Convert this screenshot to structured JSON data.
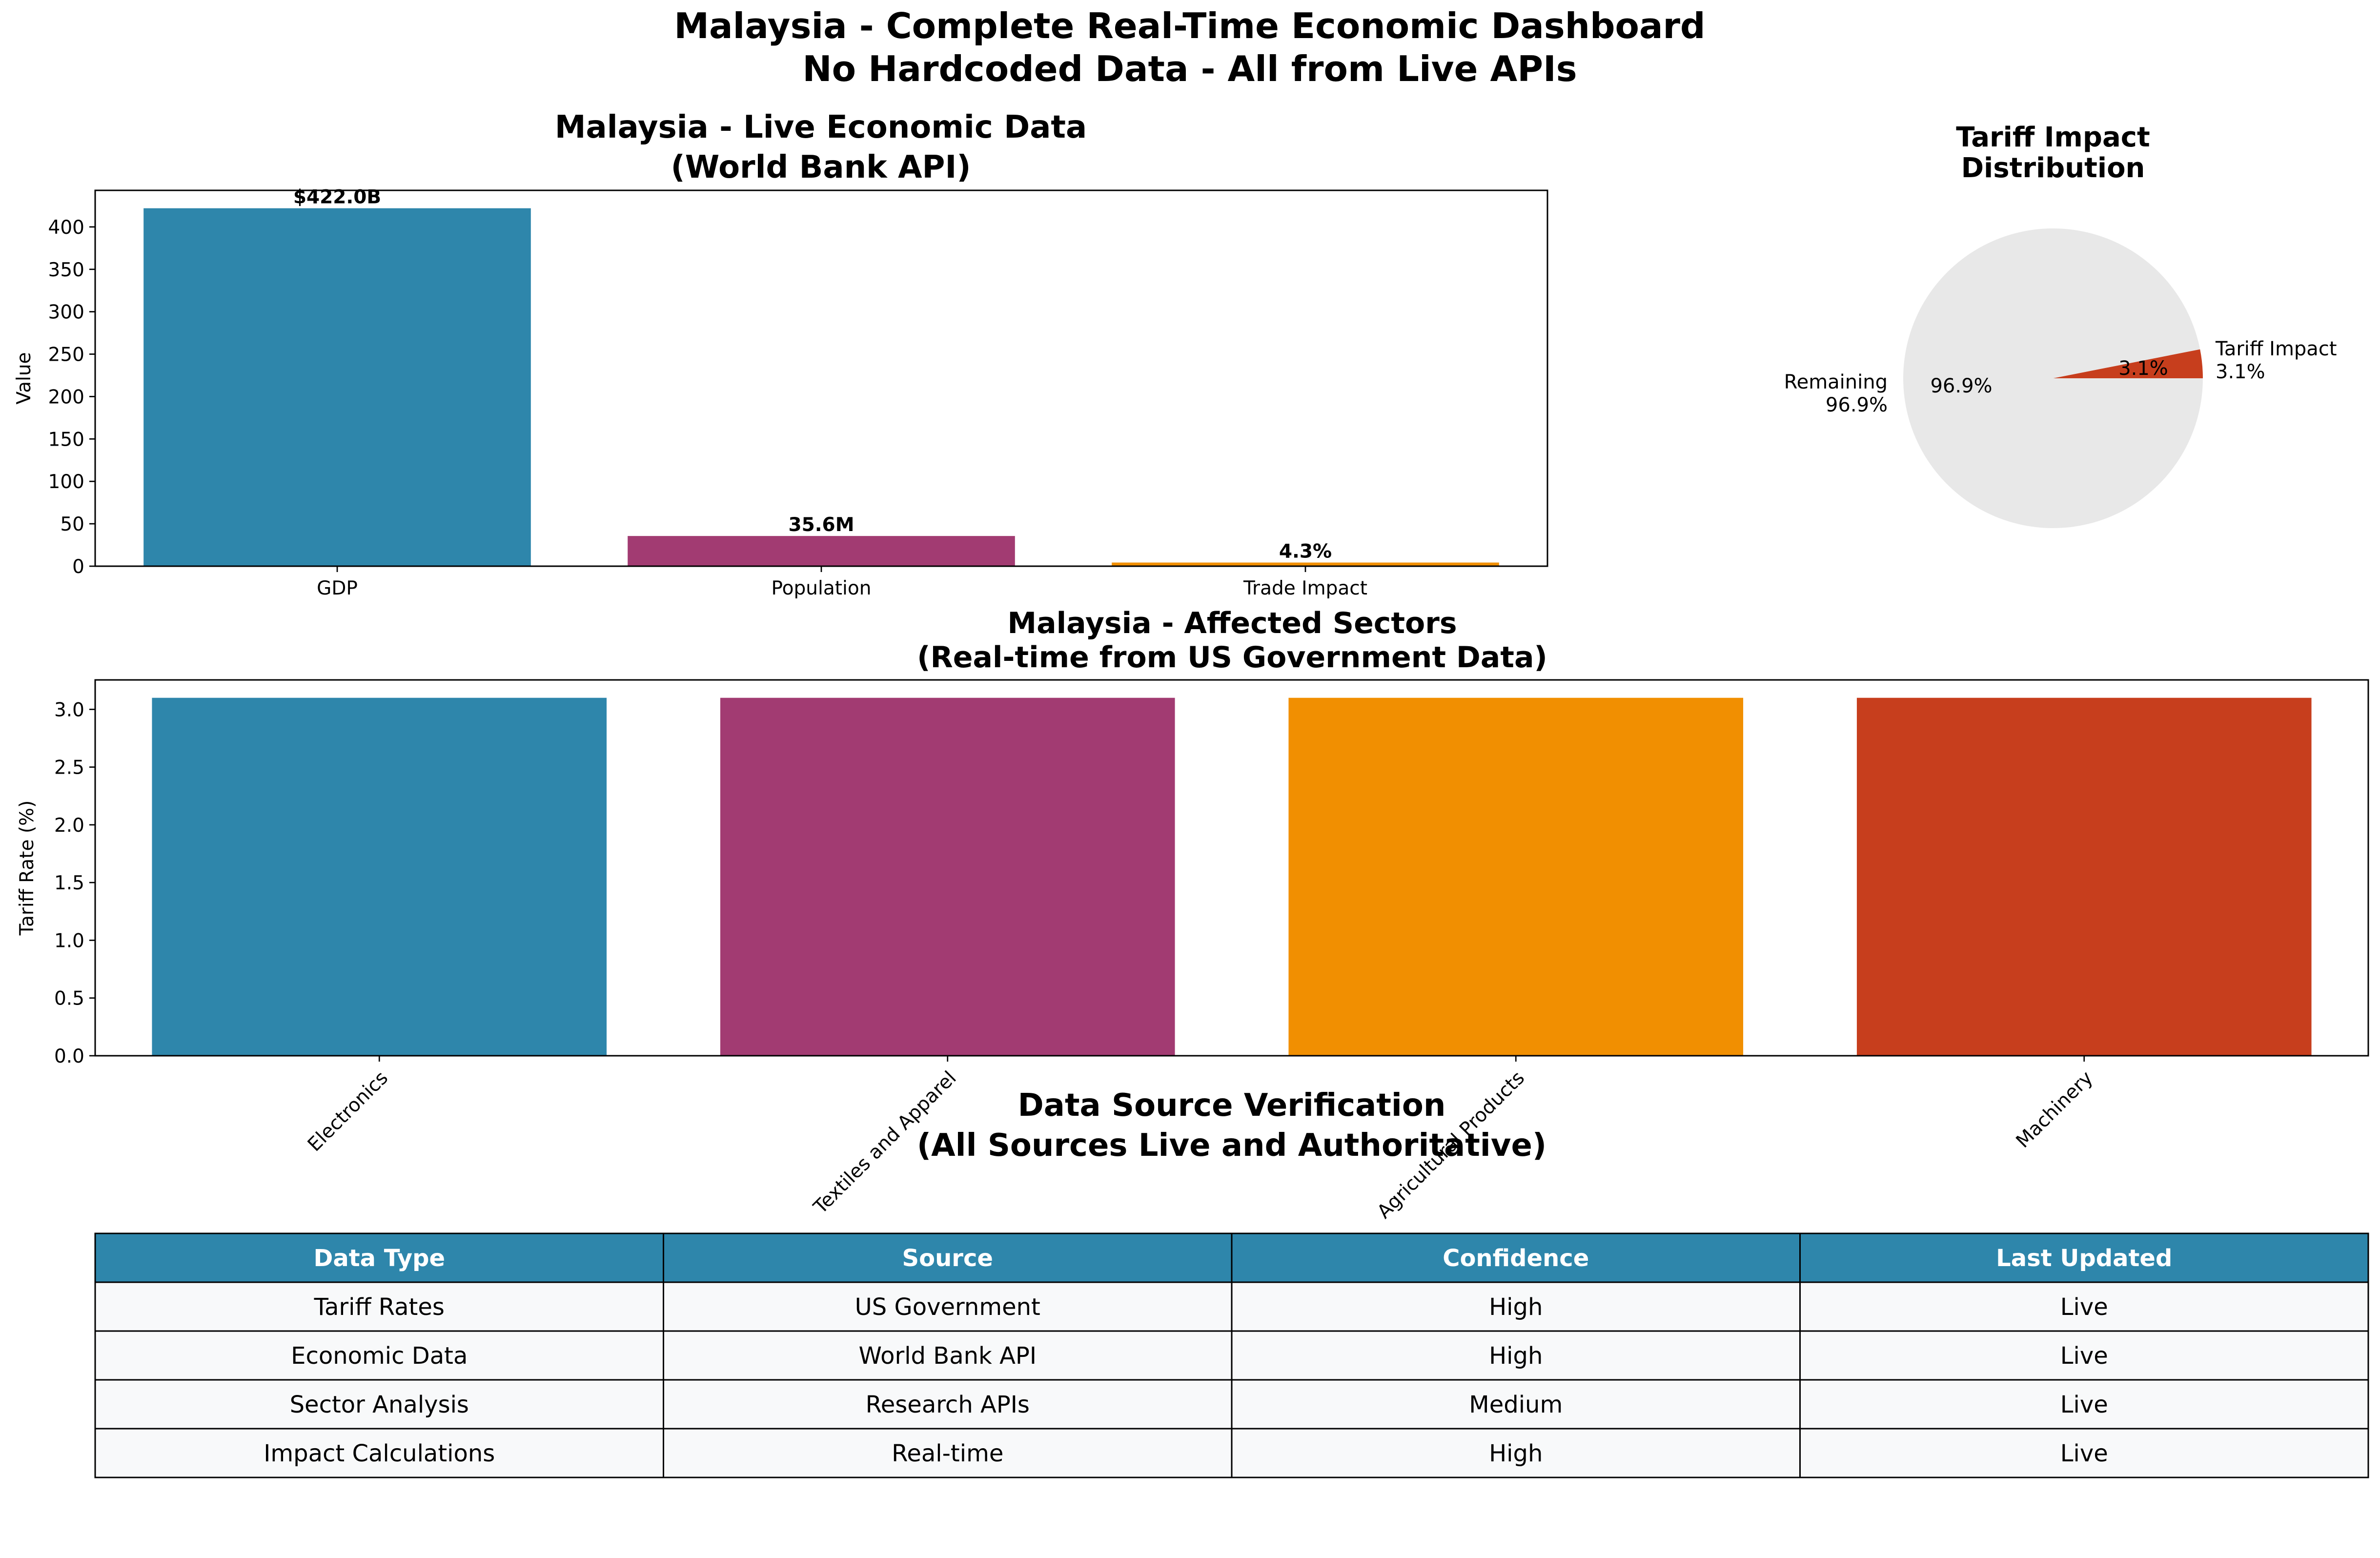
{
  "suptitle": {
    "line1": "Malaysia - Complete Real-Time Economic Dashboard",
    "line2": "No Hardcoded Data - All from Live APIs"
  },
  "colors": {
    "blue": "#2E86AB",
    "purple": "#A23B72",
    "orange": "#F18F01",
    "red": "#C73E1D",
    "pie_remaining": "#E8E8E8",
    "table_header": "#2E86AB",
    "table_cell": "#F8F9FA"
  },
  "chart_data": [
    {
      "type": "bar",
      "title_line1": "Malaysia - Live Economic Data",
      "title_line2": "(World Bank API)",
      "xlabel": "",
      "ylabel": "Value",
      "categories": [
        "GDP",
        "Population",
        "Trade Impact"
      ],
      "values": [
        422.0,
        35.6,
        4.3
      ],
      "data_labels": [
        "$422.0B",
        "35.6M",
        "4.3%"
      ],
      "ylim": [
        0,
        443.1
      ],
      "yticks": [
        0,
        50,
        100,
        150,
        200,
        250,
        300,
        350,
        400
      ],
      "grid": false
    },
    {
      "type": "pie",
      "title_line1": "Tariff Impact",
      "title_line2": "Distribution",
      "slices": [
        {
          "name": "Tariff Impact",
          "value": 3.1,
          "label_line1": "Tariff Impact",
          "label_line2": "3.1%",
          "pct": "3.1%"
        },
        {
          "name": "Remaining",
          "value": 96.9,
          "label_line1": "Remaining",
          "label_line2": "96.9%",
          "pct": "96.9%"
        }
      ]
    },
    {
      "type": "bar",
      "title_line1": "Malaysia - Affected Sectors",
      "title_line2": "(Real-time from US Government Data)",
      "xlabel": "",
      "ylabel": "Tariff Rate (%)",
      "categories": [
        "Electronics",
        "Textiles and Apparel",
        "Agricultural Products",
        "Machinery"
      ],
      "values": [
        3.1,
        3.1,
        3.1,
        3.1
      ],
      "ylim": [
        0,
        3.255
      ],
      "yticks": [
        "0.0",
        "0.5",
        "1.0",
        "1.5",
        "2.0",
        "2.5",
        "3.0"
      ],
      "grid": false
    },
    {
      "type": "table",
      "title_line1": "Data Source Verification",
      "title_line2": "(All Sources Live and Authoritative)",
      "columns": [
        "Data Type",
        "Source",
        "Confidence",
        "Last Updated"
      ],
      "rows": [
        [
          "Tariff Rates",
          "US Government",
          "High",
          "Live"
        ],
        [
          "Economic Data",
          "World Bank API",
          "High",
          "Live"
        ],
        [
          "Sector Analysis",
          "Research APIs",
          "Medium",
          "Live"
        ],
        [
          "Impact Calculations",
          "Real-time",
          "High",
          "Live"
        ]
      ]
    }
  ]
}
